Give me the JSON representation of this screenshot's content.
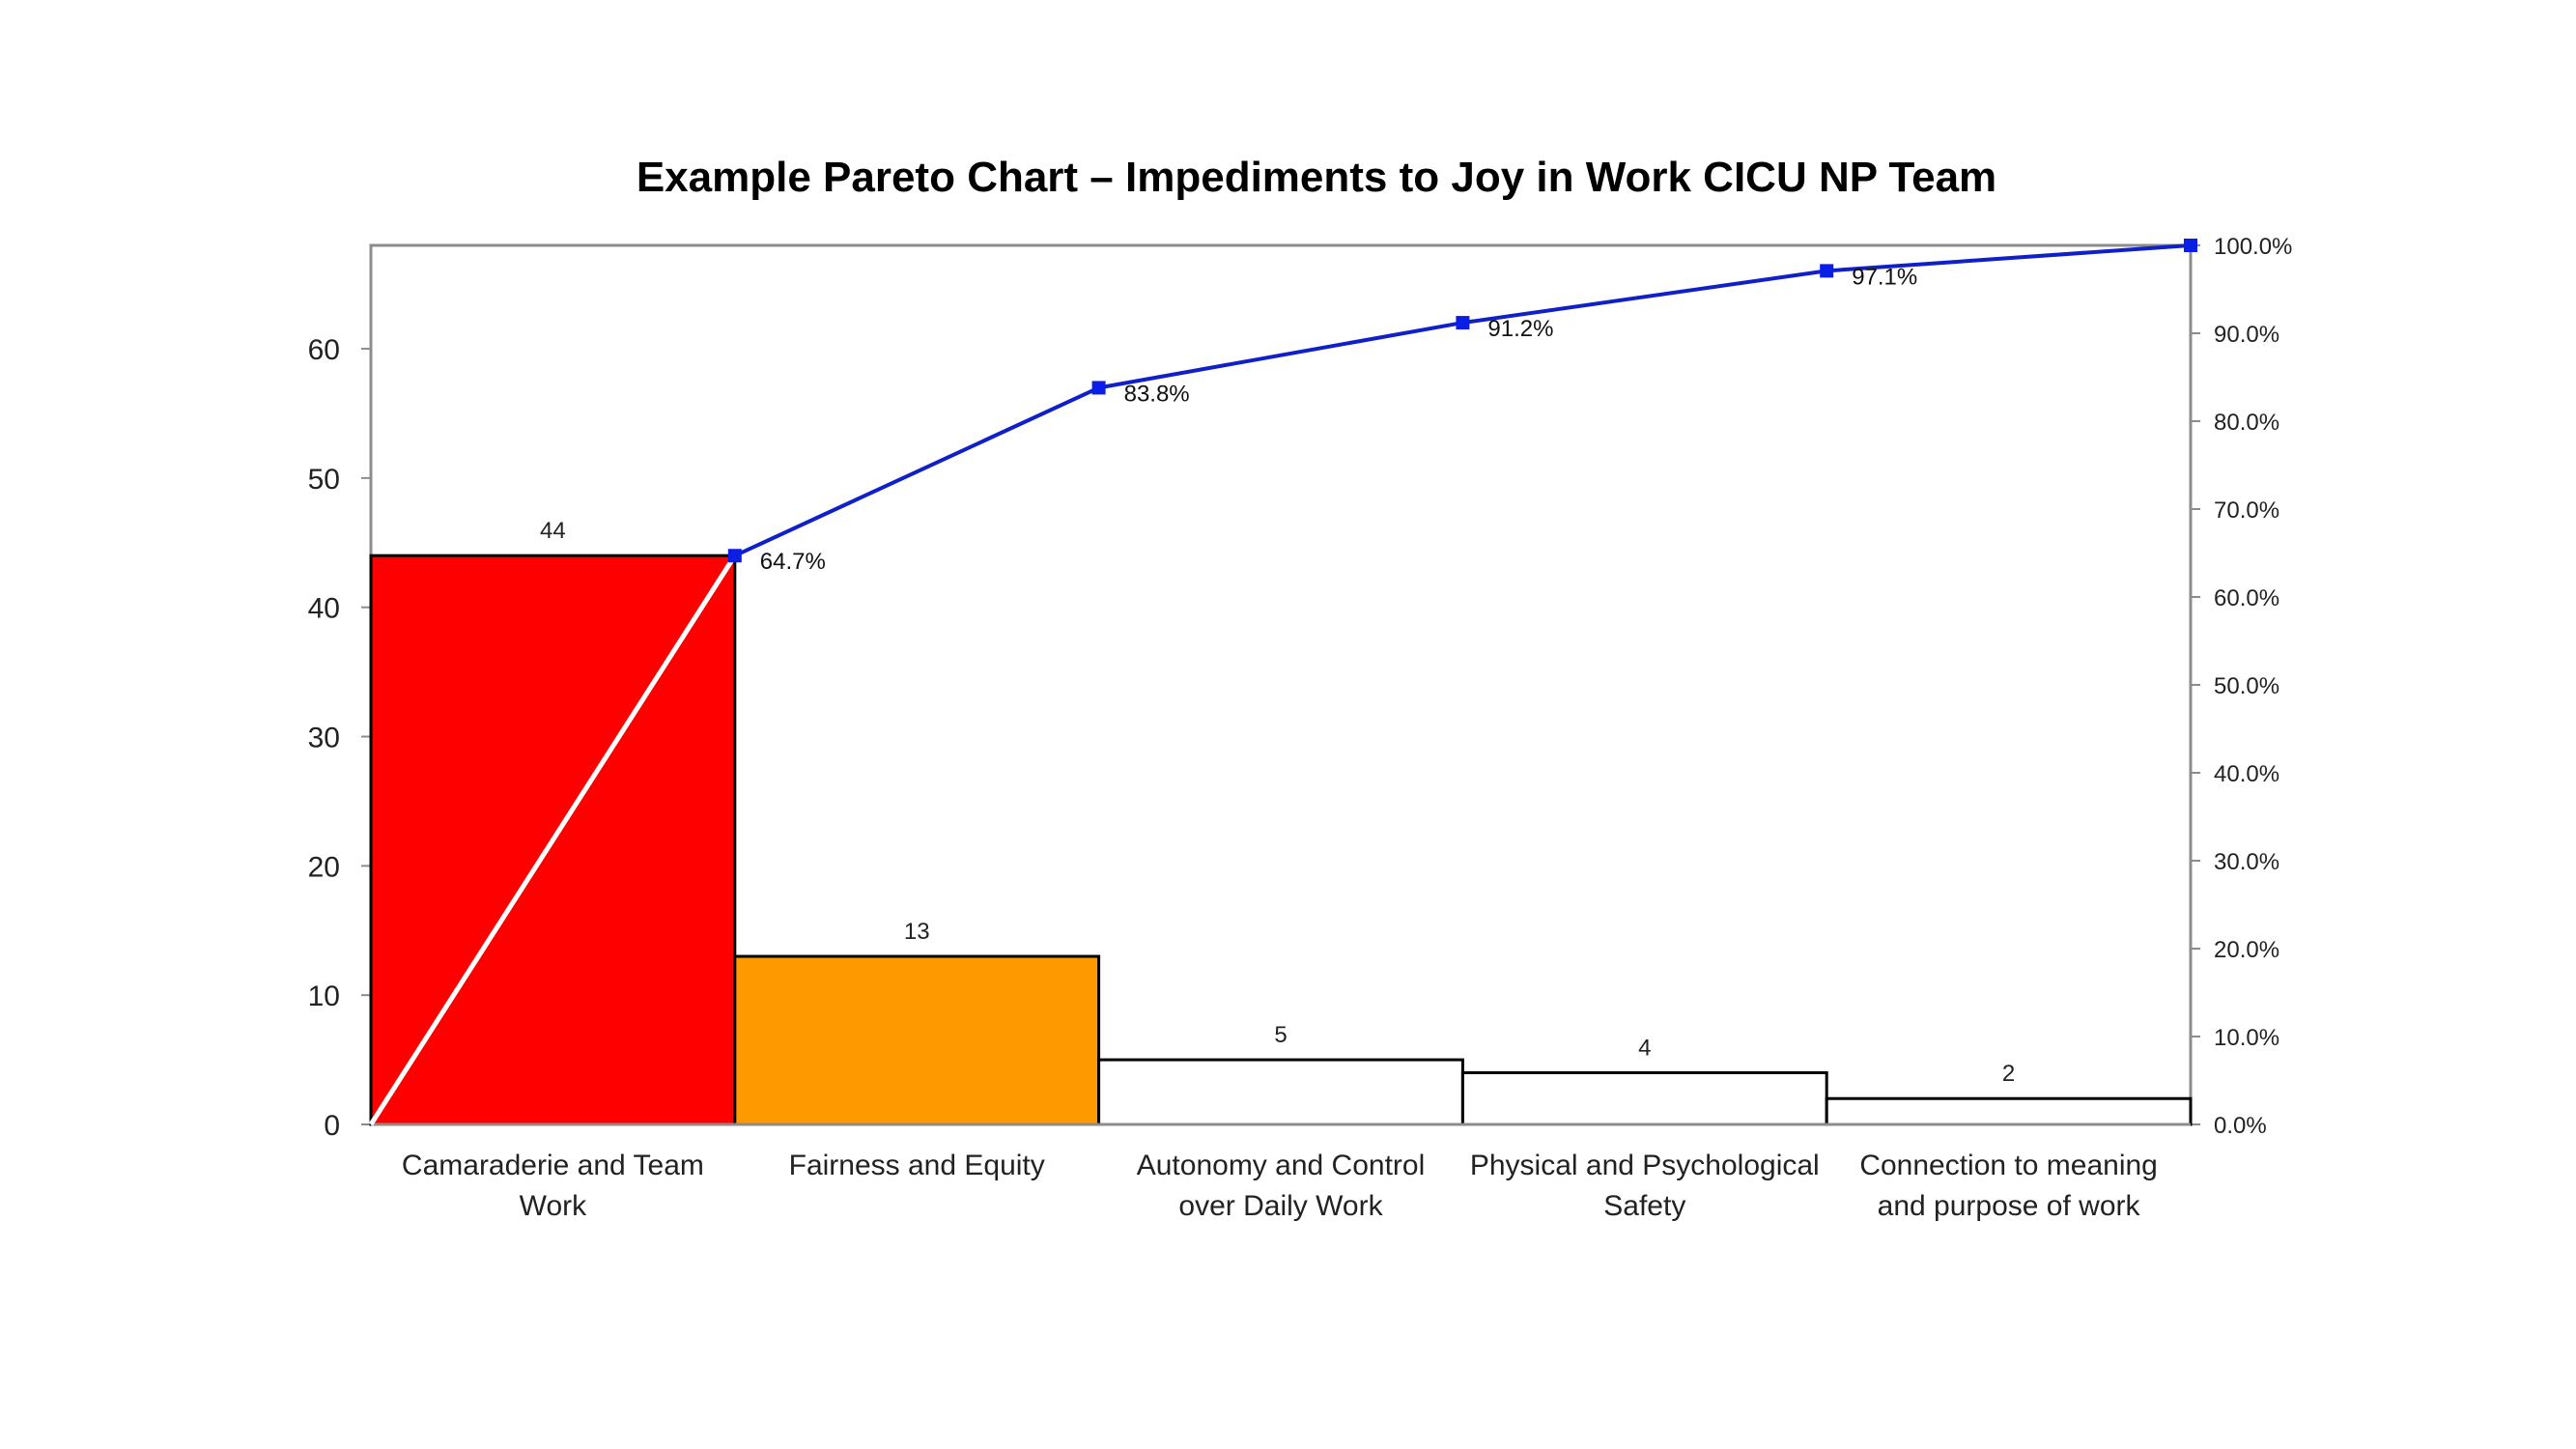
{
  "chart_data": {
    "type": "bar",
    "title": "Example Pareto Chart – Impediments to Joy in Work CICU NP Team",
    "categories": [
      [
        "Camaraderie and Team",
        "Work"
      ],
      [
        "Fairness and Equity"
      ],
      [
        "Autonomy and Control",
        "over Daily Work"
      ],
      [
        "Physical and Psychological",
        "Safety"
      ],
      [
        "Connection to meaning",
        "and purpose of work"
      ]
    ],
    "values": [
      44,
      13,
      5,
      4,
      2
    ],
    "bar_colors": [
      "#ff0000",
      "#ff9900",
      "#ffffff",
      "#ffffff",
      "#ffffff"
    ],
    "bar_labels": [
      "44",
      "13",
      "5",
      "4",
      "2"
    ],
    "ylim": [
      0,
      68
    ],
    "yticks": [
      0,
      10,
      20,
      30,
      40,
      50,
      60
    ],
    "cumulative": {
      "line_color": "#1020c8",
      "marker_color": "#0a1ee6",
      "start_line_color": "#ffffff",
      "values": [
        64.7,
        83.8,
        91.2,
        97.1,
        100.0
      ],
      "labels": [
        "64.7%",
        "83.8%",
        "91.2%",
        "97.1%",
        ""
      ],
      "y2lim": [
        0,
        100
      ],
      "y2ticks": [
        0,
        10,
        20,
        30,
        40,
        50,
        60,
        70,
        80,
        90,
        100
      ],
      "y2tick_labels": [
        "0.0%",
        "10.0%",
        "20.0%",
        "30.0%",
        "40.0%",
        "50.0%",
        "60.0%",
        "70.0%",
        "80.0%",
        "90.0%",
        "100.0%"
      ]
    },
    "grid": false,
    "legend": "none"
  }
}
